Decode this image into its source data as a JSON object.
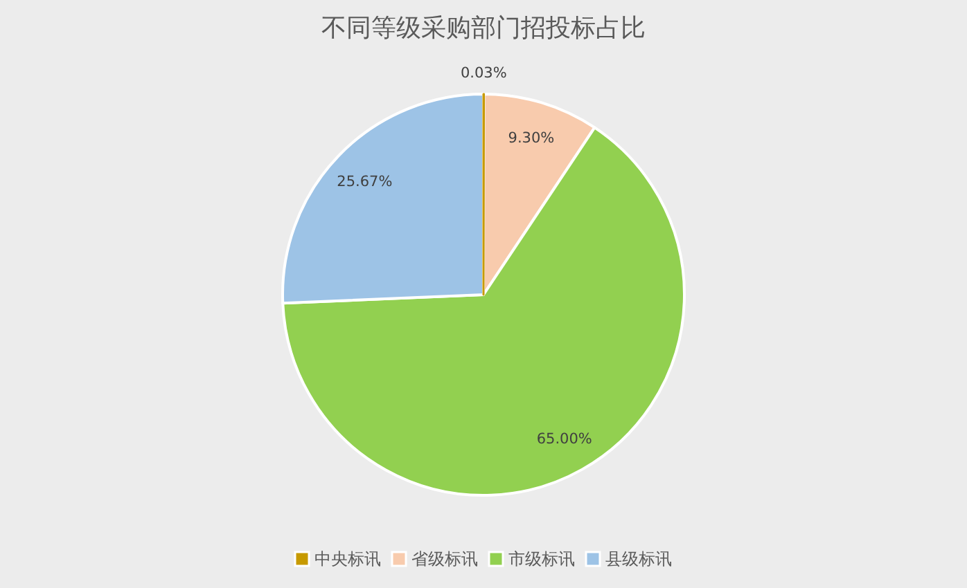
{
  "chart_data": {
    "type": "pie",
    "title": "不同等级采购部门招投标占比",
    "categories": [
      "中央标讯",
      "省级标讯",
      "市级标讯",
      "县级标讯"
    ],
    "values": [
      0.03,
      9.3,
      65.0,
      25.67
    ],
    "colors": [
      "#c79a00",
      "#f8cbad",
      "#92d050",
      "#9dc3e6"
    ],
    "value_labels": [
      "0.03%",
      "9.30%",
      "65.00%",
      "25.67%"
    ],
    "legend": "bottom"
  }
}
